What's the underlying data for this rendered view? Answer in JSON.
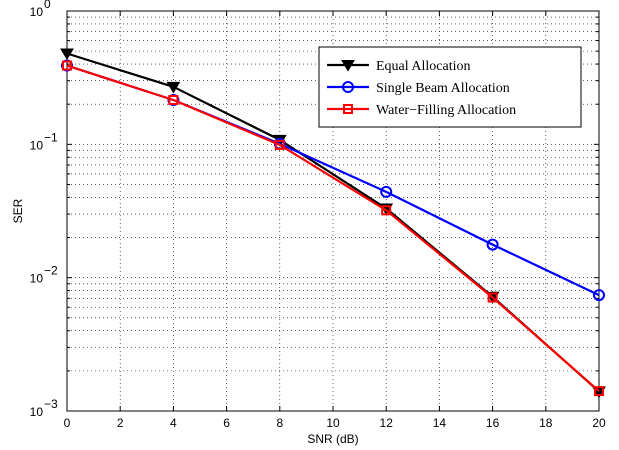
{
  "chart_data": {
    "type": "line",
    "title": "",
    "xlabel": "SNR (dB)",
    "ylabel": "SER",
    "x_scale": "linear",
    "y_scale": "log",
    "xlim": [
      0,
      20
    ],
    "ylim": [
      0.001,
      1
    ],
    "grid": true,
    "x_ticks": [
      "0",
      "2",
      "4",
      "6",
      "8",
      "10",
      "12",
      "14",
      "16",
      "18",
      "20"
    ],
    "y_ticks": [
      {
        "base": "10",
        "exp": "0",
        "value": 1
      },
      {
        "base": "10",
        "exp": "−1",
        "value": 0.1
      },
      {
        "base": "10",
        "exp": "−2",
        "value": 0.01
      },
      {
        "base": "10",
        "exp": "−3",
        "value": 0.001
      }
    ],
    "legend_position": "top-right",
    "x": [
      0,
      4,
      8,
      12,
      16,
      20
    ],
    "series": [
      {
        "name": "Equal Allocation",
        "color": "#000000",
        "marker": "triangle-down",
        "values": [
          0.48,
          0.27,
          0.108,
          0.033,
          0.0072,
          0.0014
        ]
      },
      {
        "name": "Single Beam Allocation",
        "color": "#0000ff",
        "marker": "circle",
        "values": [
          0.39,
          0.215,
          0.101,
          0.044,
          0.0177,
          0.0074
        ]
      },
      {
        "name": "Water−Filling Allocation",
        "color": "#ff0000",
        "marker": "square",
        "values": [
          0.39,
          0.215,
          0.099,
          0.032,
          0.0071,
          0.00141
        ]
      }
    ]
  }
}
